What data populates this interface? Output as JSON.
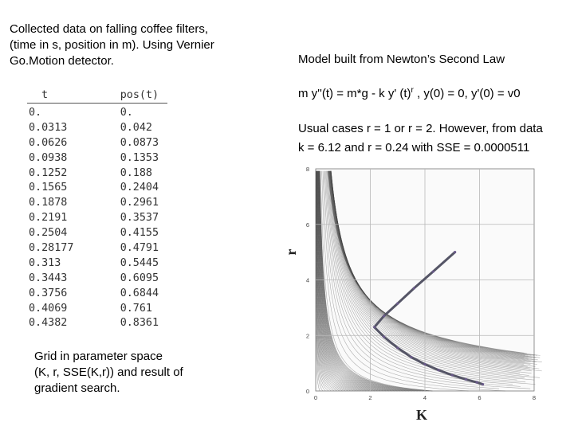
{
  "intro": {
    "line1": "Collected data on falling coffee filters,",
    "line2": "(time in s, position in m).  Using Vernier",
    "line3": "Go.Motion detector."
  },
  "table": {
    "headers": [
      "t",
      "pos(t)"
    ],
    "rows": [
      [
        "0.",
        "0."
      ],
      [
        "0.0313",
        "0.042"
      ],
      [
        "0.0626",
        "0.0873"
      ],
      [
        "0.0938",
        "0.1353"
      ],
      [
        "0.1252",
        "0.188"
      ],
      [
        "0.1565",
        "0.2404"
      ],
      [
        "0.1878",
        "0.2961"
      ],
      [
        "0.2191",
        "0.3537"
      ],
      [
        "0.2504",
        "0.4155"
      ],
      [
        "0.28177",
        "0.4791"
      ],
      [
        "0.313",
        "0.5445"
      ],
      [
        "0.3443",
        "0.6095"
      ],
      [
        "0.3756",
        "0.6844"
      ],
      [
        "0.4069",
        "0.761"
      ],
      [
        "0.4382",
        "0.8361"
      ]
    ]
  },
  "caption": {
    "line1": "Grid in parameter space",
    "line2": "(K, r, SSE(K,r)) and result of",
    "line3": "gradient search."
  },
  "model": {
    "title": "Model built from Newton’s Second Law",
    "eq_main": "m y''(t) = m*g - k y' (t)",
    "eq_sup": "r",
    "eq_tail": " , y(0) = 0, y'(0) = v0",
    "usual_line1": "Usual cases r = 1 or r = 2. However, from data",
    "usual_line2": "k = 6.12 and r = 0.24 with SSE = 0.0000511"
  },
  "chart_data": {
    "type": "contour",
    "xlabel": "K",
    "ylabel": "r",
    "xlim": [
      0,
      8
    ],
    "ylim": [
      0,
      8
    ],
    "xticks": [
      "0",
      "2",
      "4",
      "6",
      "8"
    ],
    "yticks": [
      "0",
      "2",
      "4",
      "6",
      "8"
    ],
    "grid": true,
    "search_path": {
      "x": [
        5.1,
        4.3,
        3.6,
        3.0,
        2.5,
        2.15,
        2.5,
        3.0,
        3.5,
        4.0,
        4.5,
        5.0,
        5.5,
        5.9,
        6.12
      ],
      "y": [
        5.0,
        4.3,
        3.7,
        3.15,
        2.7,
        2.3,
        1.95,
        1.55,
        1.22,
        0.96,
        0.75,
        0.57,
        0.42,
        0.31,
        0.24
      ]
    },
    "colors": {
      "path": "#555566",
      "contour": "#444444",
      "grid": "#b8b8b8"
    }
  }
}
